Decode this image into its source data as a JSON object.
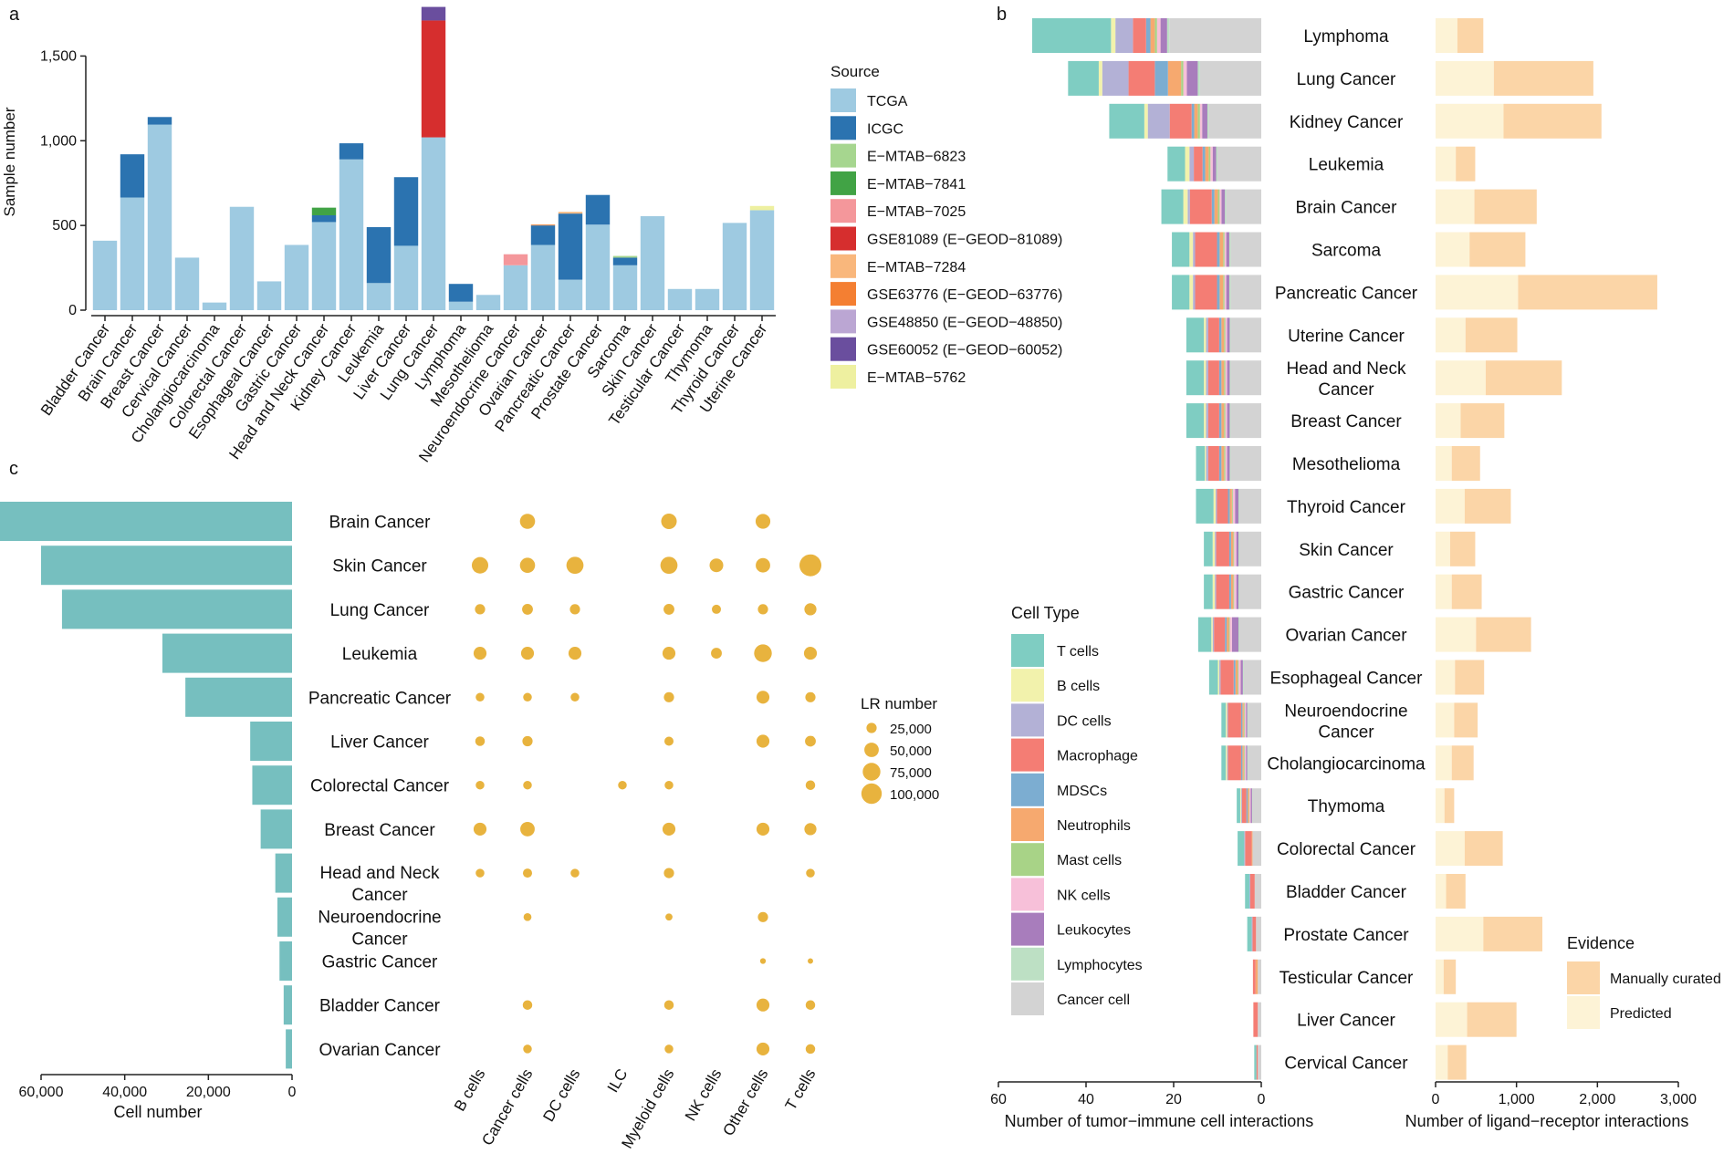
{
  "panel_labels": {
    "a": "a",
    "b": "b",
    "c": "c"
  },
  "chart_data": [
    {
      "id": "panel-a",
      "type": "bar",
      "stacked": true,
      "title": "",
      "xlabel": "",
      "ylabel": "Sample number",
      "ylim": [
        0,
        1750
      ],
      "yticks": [
        0,
        500,
        1000,
        1500
      ],
      "ytick_labels": [
        "0",
        "500",
        "1,000",
        "1,500"
      ],
      "legend_title": "Source",
      "legend_position": "right",
      "categories": [
        "Bladder Cancer",
        "Brain Cancer",
        "Breast Cancer",
        "Cervical Cancer",
        "Cholangiocarcinoma",
        "Colorectal Cancer",
        "Esophageal Cancer",
        "Gastric Cancer",
        "Head and Neck Cancer",
        "Kidney Cancer",
        "Leukemia",
        "Liver Cancer",
        "Lung Cancer",
        "Lymphoma",
        "Mesothelioma",
        "Neuroendocrine Cancer",
        "Ovarian Cancer",
        "Pancreatic Cancer",
        "Prostate Cancer",
        "Sarcoma",
        "Skin Cancer",
        "Testicular Cancer",
        "Thymoma",
        "Thyroid Cancer",
        "Uterine Cancer"
      ],
      "series": [
        {
          "name": "TCGA",
          "color": "#9ecae1",
          "values": [
            410,
            665,
            1095,
            310,
            45,
            610,
            170,
            385,
            520,
            890,
            160,
            380,
            1020,
            50,
            90,
            265,
            385,
            180,
            505,
            265,
            555,
            125,
            125,
            515,
            590
          ]
        },
        {
          "name": "ICGC",
          "color": "#2b73b0",
          "values": [
            0,
            255,
            45,
            0,
            0,
            0,
            0,
            0,
            40,
            95,
            330,
            405,
            0,
            105,
            0,
            0,
            115,
            390,
            175,
            45,
            0,
            0,
            0,
            0,
            0
          ]
        },
        {
          "name": "E−MTAB−6823",
          "color": "#a6d68f",
          "values": [
            0,
            0,
            0,
            0,
            0,
            0,
            0,
            0,
            0,
            0,
            0,
            0,
            0,
            0,
            0,
            0,
            0,
            0,
            0,
            10,
            0,
            0,
            0,
            0,
            0
          ]
        },
        {
          "name": "E−MTAB−7841",
          "color": "#41a345",
          "values": [
            0,
            0,
            0,
            0,
            0,
            0,
            0,
            0,
            45,
            0,
            0,
            0,
            0,
            0,
            0,
            0,
            0,
            0,
            0,
            0,
            0,
            0,
            0,
            0,
            0
          ]
        },
        {
          "name": "E−MTAB−7025",
          "color": "#f4979b",
          "values": [
            0,
            0,
            0,
            0,
            0,
            0,
            0,
            0,
            0,
            0,
            0,
            0,
            0,
            0,
            0,
            65,
            0,
            0,
            0,
            0,
            0,
            0,
            0,
            0,
            0
          ]
        },
        {
          "name": "GSE81089 (E−GEOD−81089)",
          "color": "#d62e2e",
          "values": [
            0,
            0,
            0,
            0,
            0,
            0,
            0,
            0,
            0,
            0,
            0,
            0,
            690,
            0,
            0,
            0,
            0,
            0,
            0,
            0,
            0,
            0,
            0,
            0,
            0
          ]
        },
        {
          "name": "E−MTAB−7284",
          "color": "#f9b77c",
          "values": [
            0,
            0,
            0,
            0,
            0,
            0,
            0,
            0,
            0,
            0,
            0,
            0,
            0,
            0,
            0,
            0,
            0,
            10,
            0,
            0,
            0,
            0,
            0,
            0,
            0
          ]
        },
        {
          "name": "GSE63776 (E−GEOD−63776)",
          "color": "#f47f32",
          "values": [
            0,
            0,
            0,
            0,
            0,
            0,
            0,
            0,
            0,
            0,
            0,
            0,
            0,
            0,
            0,
            0,
            5,
            0,
            0,
            0,
            0,
            0,
            0,
            0,
            0
          ]
        },
        {
          "name": "GSE48850 (E−GEOD−48850)",
          "color": "#bba6d3",
          "values": [
            0,
            0,
            0,
            0,
            0,
            0,
            0,
            0,
            0,
            0,
            0,
            0,
            0,
            0,
            0,
            0,
            0,
            0,
            0,
            0,
            0,
            0,
            0,
            0,
            0
          ]
        },
        {
          "name": "GSE60052 (E−GEOD−60052)",
          "color": "#6a4e9e",
          "values": [
            0,
            0,
            0,
            0,
            0,
            0,
            0,
            0,
            0,
            0,
            0,
            0,
            80,
            0,
            0,
            0,
            0,
            0,
            0,
            0,
            0,
            0,
            0,
            0,
            0
          ]
        },
        {
          "name": "E−MTAB−5762",
          "color": "#eef0a0",
          "values": [
            0,
            0,
            0,
            0,
            0,
            0,
            0,
            0,
            0,
            0,
            0,
            0,
            0,
            0,
            0,
            0,
            0,
            0,
            0,
            0,
            0,
            0,
            0,
            0,
            25
          ]
        }
      ]
    },
    {
      "id": "panel-b-interactions",
      "type": "bar",
      "orientation": "horizontal",
      "stacked": true,
      "title": "",
      "xlabel": "Number of tumor−immune cell interactions",
      "xlim": [
        60,
        0
      ],
      "xticks": [
        60,
        40,
        20,
        0
      ],
      "xtick_labels": [
        "60",
        "40",
        "20",
        "0"
      ],
      "legend_title": "Cell Type",
      "legend_position": "left",
      "categories": [
        "Lymphoma",
        "Lung Cancer",
        "Kidney Cancer",
        "Leukemia",
        "Brain Cancer",
        "Sarcoma",
        "Pancreatic Cancer",
        "Uterine Cancer",
        "Head and Neck Cancer",
        "Breast Cancer",
        "Mesothelioma",
        "Thyroid Cancer",
        "Skin Cancer",
        "Gastric Cancer",
        "Ovarian Cancer",
        "Esophageal Cancer",
        "Neuroendocrine Cancer",
        "Cholangiocarcinoma",
        "Thymoma",
        "Colorectal Cancer",
        "Bladder Cancer",
        "Prostate Cancer",
        "Testicular Cancer",
        "Liver Cancer",
        "Cervical Cancer"
      ],
      "series": [
        {
          "name": "Cancer cell",
          "color": "#d3d3d3",
          "values": [
            21,
            14,
            12,
            10,
            8,
            7,
            7,
            7,
            7,
            7,
            7,
            5,
            5,
            5,
            5,
            4,
            3,
            3,
            2,
            2,
            1.5,
            1.2,
            0.8,
            0.8,
            0.8
          ]
        },
        {
          "name": "Lymphocytes",
          "color": "#bde0c4",
          "values": [
            0.5,
            0.5,
            0.3,
            0.3,
            0.3,
            0.3,
            0.3,
            0.2,
            0.2,
            0.2,
            0.2,
            0.2,
            0.2,
            0.2,
            0.2,
            0.2,
            0.2,
            0.2,
            0.1,
            0,
            0,
            0,
            0,
            0,
            0
          ]
        },
        {
          "name": "Leukocytes",
          "color": "#a87dbc",
          "values": [
            1.5,
            2.5,
            1.2,
            0.8,
            0.8,
            0.7,
            0.7,
            0.6,
            0.6,
            0.6,
            0.6,
            0.8,
            0.5,
            0.5,
            1.5,
            0.5,
            0.3,
            0.3,
            0.3,
            0,
            0,
            0,
            0,
            0,
            0
          ]
        },
        {
          "name": "NK cells",
          "color": "#f7c0d9",
          "values": [
            0.8,
            0.8,
            0.5,
            0.5,
            0.4,
            0.4,
            0.4,
            0.4,
            0.4,
            0.4,
            0.4,
            0.5,
            0.5,
            0.5,
            0.5,
            0.5,
            0.3,
            0.3,
            0.3,
            0,
            0,
            0,
            0,
            0,
            0
          ]
        },
        {
          "name": "Mast cells",
          "color": "#a8d387",
          "values": [
            0.5,
            0.5,
            0.5,
            0.4,
            0.4,
            0.3,
            0.3,
            0.3,
            0.3,
            0.3,
            0.3,
            0.2,
            0.2,
            0.2,
            0.2,
            0.2,
            0.2,
            0.2,
            0.1,
            0,
            0,
            0,
            0,
            0,
            0
          ]
        },
        {
          "name": "Neutrophils",
          "color": "#f6a96f",
          "values": [
            1,
            3,
            0.8,
            0.8,
            0.8,
            0.8,
            0.8,
            0.6,
            0.6,
            0.6,
            0.6,
            0.5,
            0.5,
            0.5,
            0.5,
            0.5,
            0.3,
            0.3,
            0.3,
            0.2,
            0,
            0,
            0.5,
            0,
            0
          ]
        },
        {
          "name": "MDSCs",
          "color": "#7cadd1",
          "values": [
            1,
            3,
            0.6,
            0.6,
            0.6,
            0.6,
            0.6,
            0.5,
            0.5,
            0.5,
            0.5,
            0.4,
            0.4,
            0.4,
            0.4,
            0.4,
            0.3,
            0.3,
            0.3,
            0,
            0,
            0,
            0,
            0,
            0
          ]
        },
        {
          "name": "Macrophage",
          "color": "#f47d74",
          "values": [
            3,
            6,
            5,
            2,
            5,
            5,
            5,
            2.5,
            2.5,
            2.5,
            2.5,
            2.5,
            3,
            3,
            2.5,
            3,
            3,
            3,
            1,
            1.5,
            1,
            0.8,
            0.6,
            1,
            0.3
          ]
        },
        {
          "name": "DC cells",
          "color": "#b3b1d6",
          "values": [
            4,
            6,
            5,
            1,
            0.5,
            0.5,
            0.5,
            0.5,
            0.5,
            0.5,
            0.5,
            0.3,
            0.3,
            0.3,
            0.3,
            0.3,
            0.2,
            0.2,
            0.2,
            0.2,
            0.2,
            0.2,
            0,
            0,
            0
          ]
        },
        {
          "name": "B cells",
          "color": "#f2f2ac",
          "values": [
            1,
            0.8,
            0.8,
            1,
            1,
            0.8,
            0.8,
            0.5,
            0.5,
            0.5,
            0.3,
            0.5,
            0.5,
            0.5,
            0.3,
            0.3,
            0.3,
            0.3,
            0.2,
            0,
            0,
            0,
            0,
            0,
            0
          ]
        },
        {
          "name": "T cells",
          "color": "#7fcdc2",
          "values": [
            18,
            7,
            8,
            4,
            5,
            4,
            4,
            4,
            4,
            4,
            2,
            4,
            2,
            2,
            3,
            2,
            1,
            1,
            0.8,
            1.5,
            1,
            1,
            0,
            0,
            0.5
          ]
        }
      ]
    },
    {
      "id": "panel-b-lr",
      "type": "bar",
      "orientation": "horizontal",
      "stacked": true,
      "title": "",
      "xlabel": "Number of ligand−receptor interactions",
      "xlim": [
        0,
        3000
      ],
      "xticks": [
        0,
        1000,
        2000,
        3000
      ],
      "xtick_labels": [
        "0",
        "1,000",
        "2,000",
        "3,000"
      ],
      "legend_title": "Evidence",
      "legend_position": "bottom-right",
      "categories": [
        "Lymphoma",
        "Lung Cancer",
        "Kidney Cancer",
        "Leukemia",
        "Brain Cancer",
        "Sarcoma",
        "Pancreatic Cancer",
        "Uterine Cancer",
        "Head and Neck Cancer",
        "Breast Cancer",
        "Mesothelioma",
        "Thyroid Cancer",
        "Skin Cancer",
        "Gastric Cancer",
        "Ovarian Cancer",
        "Esophageal Cancer",
        "Neuroendocrine Cancer",
        "Cholangiocarcinoma",
        "Thymoma",
        "Colorectal Cancer",
        "Bladder Cancer",
        "Prostate Cancer",
        "Testicular Cancer",
        "Liver Cancer",
        "Cervical Cancer"
      ],
      "series": [
        {
          "name": "Predicted",
          "color": "#fdf3d6",
          "values": [
            270,
            720,
            840,
            250,
            480,
            420,
            1020,
            370,
            620,
            310,
            200,
            360,
            180,
            200,
            500,
            240,
            230,
            200,
            110,
            360,
            130,
            590,
            100,
            390,
            150
          ]
        },
        {
          "name": "Manually curated",
          "color": "#fbd5a7",
          "values": [
            320,
            1230,
            1210,
            240,
            770,
            690,
            1720,
            640,
            940,
            540,
            350,
            570,
            310,
            370,
            680,
            360,
            290,
            270,
            120,
            470,
            240,
            730,
            150,
            610,
            230
          ]
        }
      ],
      "legend_order": [
        "Manually curated",
        "Predicted"
      ]
    },
    {
      "id": "panel-c-cells",
      "type": "bar",
      "orientation": "horizontal",
      "title": "",
      "xlabel": "Cell number",
      "xlim": [
        70000,
        0
      ],
      "xticks": [
        60000,
        40000,
        20000,
        0
      ],
      "xtick_labels": [
        "60,000",
        "40,000",
        "20,000",
        "0"
      ],
      "categories": [
        "Brain Cancer",
        "Skin Cancer",
        "Lung Cancer",
        "Leukemia",
        "Pancreatic Cancer",
        "Liver Cancer",
        "Colorectal Cancer",
        "Breast Cancer",
        "Head and Neck Cancer",
        "Neuroendocrine Cancer",
        "Gastric Cancer",
        "Bladder Cancer",
        "Ovarian Cancer"
      ],
      "values": [
        70000,
        60000,
        55000,
        31000,
        25500,
        10000,
        9500,
        7500,
        4000,
        3500,
        3000,
        2000,
        1500
      ],
      "color": "#76bfbf"
    },
    {
      "id": "panel-c-dots",
      "type": "scatter",
      "title": "",
      "legend_title": "LR number",
      "legend_position": "right",
      "legend_values": [
        25000,
        50000,
        75000,
        100000
      ],
      "legend_labels": [
        "25,000",
        "50,000",
        "75,000",
        "100,000"
      ],
      "color": "#e8b33e",
      "columns": [
        "B cells",
        "Cancer cells",
        "DC cells",
        "ILC",
        "Myeloid cells",
        "NK cells",
        "Other cells",
        "T cells"
      ],
      "rows": [
        "Brain Cancer",
        "Skin Cancer",
        "Lung Cancer",
        "Leukemia",
        "Pancreatic Cancer",
        "Liver Cancer",
        "Colorectal Cancer",
        "Breast Cancer",
        "Head and Neck Cancer",
        "Neuroendocrine Cancer",
        "Gastric Cancer",
        "Bladder Cancer",
        "Ovarian Cancer"
      ],
      "values": [
        [
          0,
          55000,
          0,
          0,
          58000,
          0,
          52000,
          0
        ],
        [
          65000,
          55000,
          70000,
          0,
          70000,
          45000,
          50000,
          115000
        ],
        [
          25000,
          28000,
          25000,
          0,
          28000,
          20000,
          25000,
          35000
        ],
        [
          40000,
          40000,
          40000,
          0,
          40000,
          28000,
          75000,
          40000
        ],
        [
          18000,
          18000,
          18000,
          0,
          25000,
          0,
          40000,
          25000
        ],
        [
          22000,
          25000,
          0,
          0,
          20000,
          0,
          40000,
          28000
        ],
        [
          18000,
          18000,
          0,
          18000,
          18000,
          0,
          0,
          22000
        ],
        [
          40000,
          50000,
          0,
          0,
          40000,
          0,
          40000,
          35000
        ],
        [
          18000,
          20000,
          18000,
          0,
          25000,
          0,
          0,
          18000
        ],
        [
          0,
          15000,
          0,
          0,
          12000,
          0,
          25000,
          0
        ],
        [
          0,
          0,
          0,
          0,
          0,
          0,
          8000,
          7000
        ],
        [
          0,
          22000,
          0,
          0,
          22000,
          0,
          40000,
          22000
        ],
        [
          0,
          18000,
          0,
          0,
          18000,
          0,
          40000,
          22000
        ]
      ]
    }
  ]
}
